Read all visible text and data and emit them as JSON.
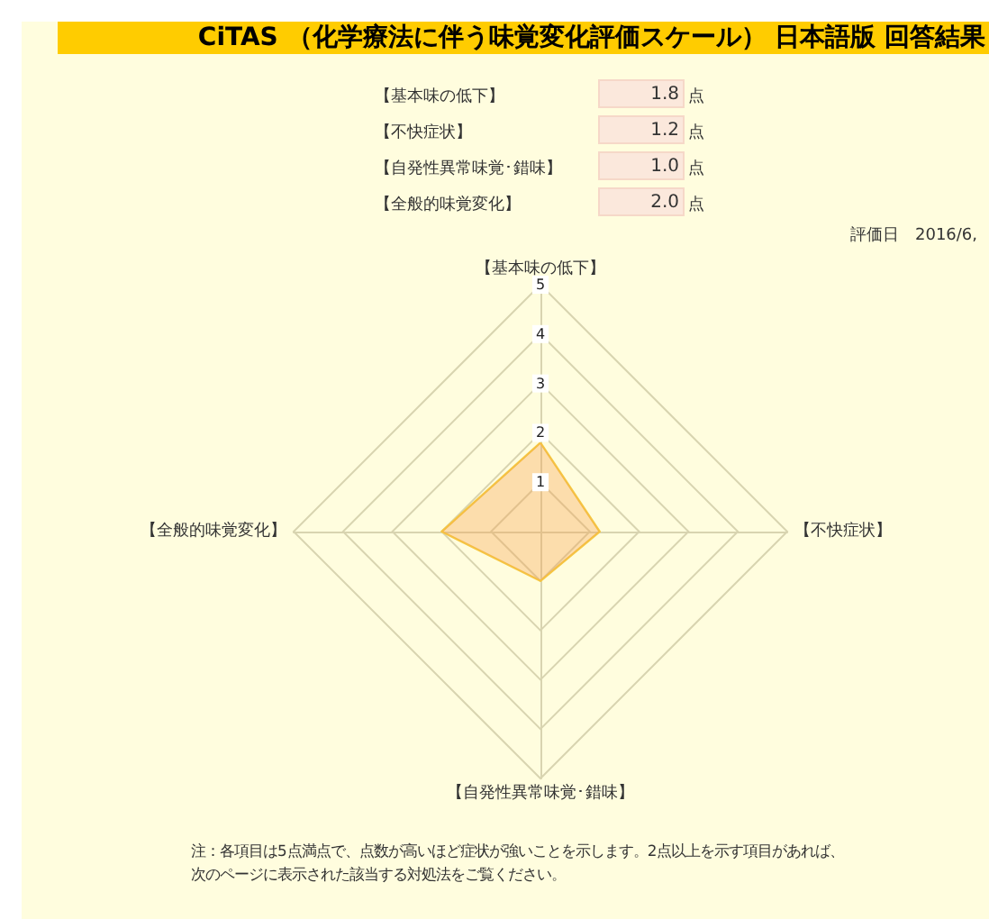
{
  "chart_data": {
    "type": "radar",
    "title": "CiTAS （化学療法に伴う味覚変化評価スケール） 日本語版 回答結果",
    "categories": [
      "【基本味の低下】",
      "【不快症状】",
      "【自発性異常味覚･錯味】",
      "【全般的味覚変化】"
    ],
    "series": [
      {
        "color": "#f5c842",
        "values": [
          1.8,
          1.2,
          1.0,
          2.0
        ]
      }
    ],
    "value_labels": [
      "1.8 点",
      "1.2 点",
      "1.0 点",
      "2.0 点"
    ],
    "ylim": [
      0,
      5
    ],
    "yticks": [
      1,
      2,
      3,
      4,
      5
    ],
    "grid": true,
    "annotations": [
      "評価日　2016/6,",
      "注：各項目は5点満点で、点数が高いほど症状が強いことを示します。2点以上を示す項目があれば、",
      "次のページに表示された該当する対処法をご覧ください。"
    ]
  }
}
